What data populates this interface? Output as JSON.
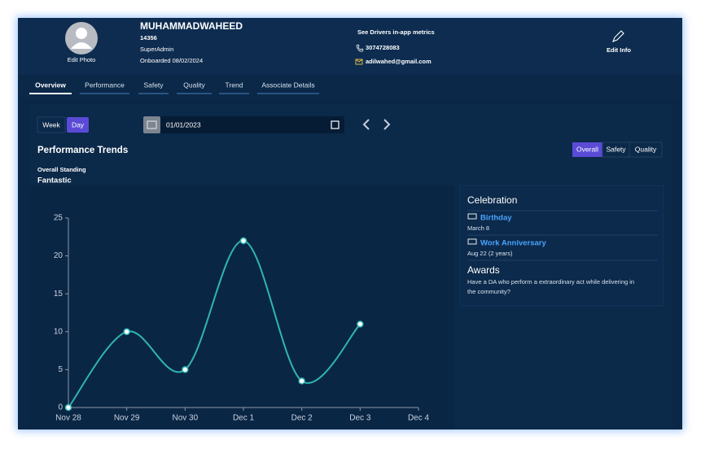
{
  "profile": {
    "name": "MUHAMMADWAHEED",
    "id": "14356",
    "role": "SuperAdmin",
    "onboarded": "Onboarded 08/02/2024",
    "edit_photo": "Edit Photo"
  },
  "contact": {
    "metrics_link": "See Drivers in-app metrics",
    "phone": "3074728083",
    "email": "adilwahed@gmail.com"
  },
  "edit_info": "Edit Info",
  "tabs": [
    "Overview",
    "Performance",
    "Safety",
    "Quality",
    "Trend",
    "Associate Details"
  ],
  "period_toggle": [
    "Week",
    "Day"
  ],
  "date": "01/01/2023",
  "section_title": "Performance Trends",
  "filters": [
    "Overall",
    "Safety",
    "Quality"
  ],
  "standing": {
    "label": "Overall Standing",
    "value": "Fantastic"
  },
  "celebration": {
    "title": "Celebration",
    "items": [
      {
        "name": "Birthday",
        "date": "March 8"
      },
      {
        "name": "Work Anniversary",
        "date": "Aug 22 (2 years)"
      }
    ]
  },
  "awards": {
    "title": "Awards",
    "text": [
      "Have a DA who perform a extraordinary act while delivering in",
      "the community?"
    ]
  },
  "chart_data": {
    "type": "line",
    "categories": [
      "Nov 28",
      "Nov 29",
      "Nov 30",
      "Dec 1",
      "Dec 2",
      "Dec 3",
      "Dec 4"
    ],
    "values": [
      0,
      10,
      5,
      22,
      3.5,
      11,
      null
    ],
    "color": "#2fb5b3",
    "ylim": [
      0,
      25
    ],
    "yticks": [
      0,
      5,
      10,
      15,
      20,
      25
    ]
  }
}
